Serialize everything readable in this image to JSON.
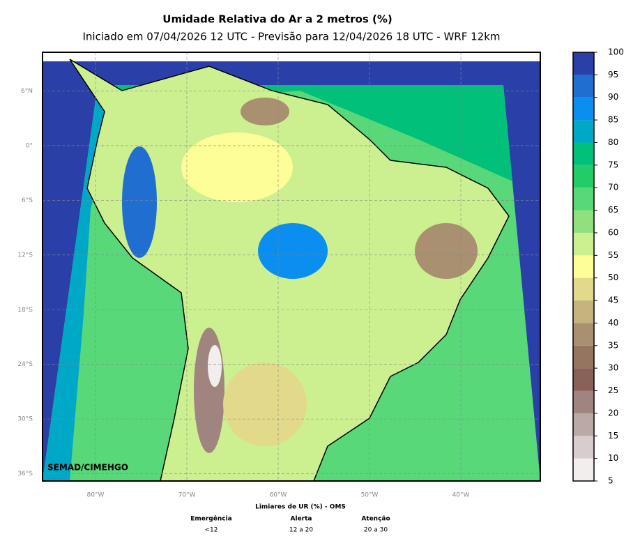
{
  "map": {
    "title": "Umidade Relativa do Ar a 2 metros (%)",
    "subtitle": "Iniciado em 07/04/2026 12 UTC - Previsão para 12/04/2026 18 UTC - WRF 12km",
    "credit": "SEMAD/CIMEHGO",
    "xlim": [
      -85.8,
      -31.3
    ],
    "ylim": [
      -36.8,
      10.25
    ],
    "xticks": [
      {
        "value": -80,
        "label": "80°W"
      },
      {
        "value": -70,
        "label": "70°W"
      },
      {
        "value": -60,
        "label": "60°W"
      },
      {
        "value": -50,
        "label": "50°W"
      },
      {
        "value": -40,
        "label": "40°W"
      }
    ],
    "yticks": [
      {
        "value": 6,
        "label": "6°N"
      },
      {
        "value": 0,
        "label": "0°"
      },
      {
        "value": -6,
        "label": "6°S"
      },
      {
        "value": -12,
        "label": "12°S"
      },
      {
        "value": -18,
        "label": "18°S"
      },
      {
        "value": -24,
        "label": "24°S"
      },
      {
        "value": -30,
        "label": "30°S"
      },
      {
        "value": -36,
        "label": "36°S"
      }
    ],
    "grid": true,
    "colorbar": {
      "levels": [
        5,
        10,
        15,
        20,
        25,
        30,
        35,
        40,
        45,
        50,
        55,
        60,
        65,
        70,
        75,
        80,
        85,
        90,
        95,
        100
      ],
      "colors": [
        "#f2eeee",
        "#d8cccc",
        "#bba9a5",
        "#a08480",
        "#8a6058",
        "#957560",
        "#a89070",
        "#c5b47e",
        "#e2d98a",
        "#fefe98",
        "#ccf090",
        "#90e080",
        "#58d878",
        "#22cc66",
        "#00c07a",
        "#00a8c8",
        "#0a8ef0",
        "#1f6ed0",
        "#2a40a8"
      ]
    },
    "thresholds": {
      "title": "Limiares de UR (%) - OMS",
      "items": [
        {
          "name": "Emergência",
          "range": "<12"
        },
        {
          "name": "Alerta",
          "range": "12 a 20"
        },
        {
          "name": "Atenção",
          "range": "20 a 30"
        }
      ]
    }
  }
}
